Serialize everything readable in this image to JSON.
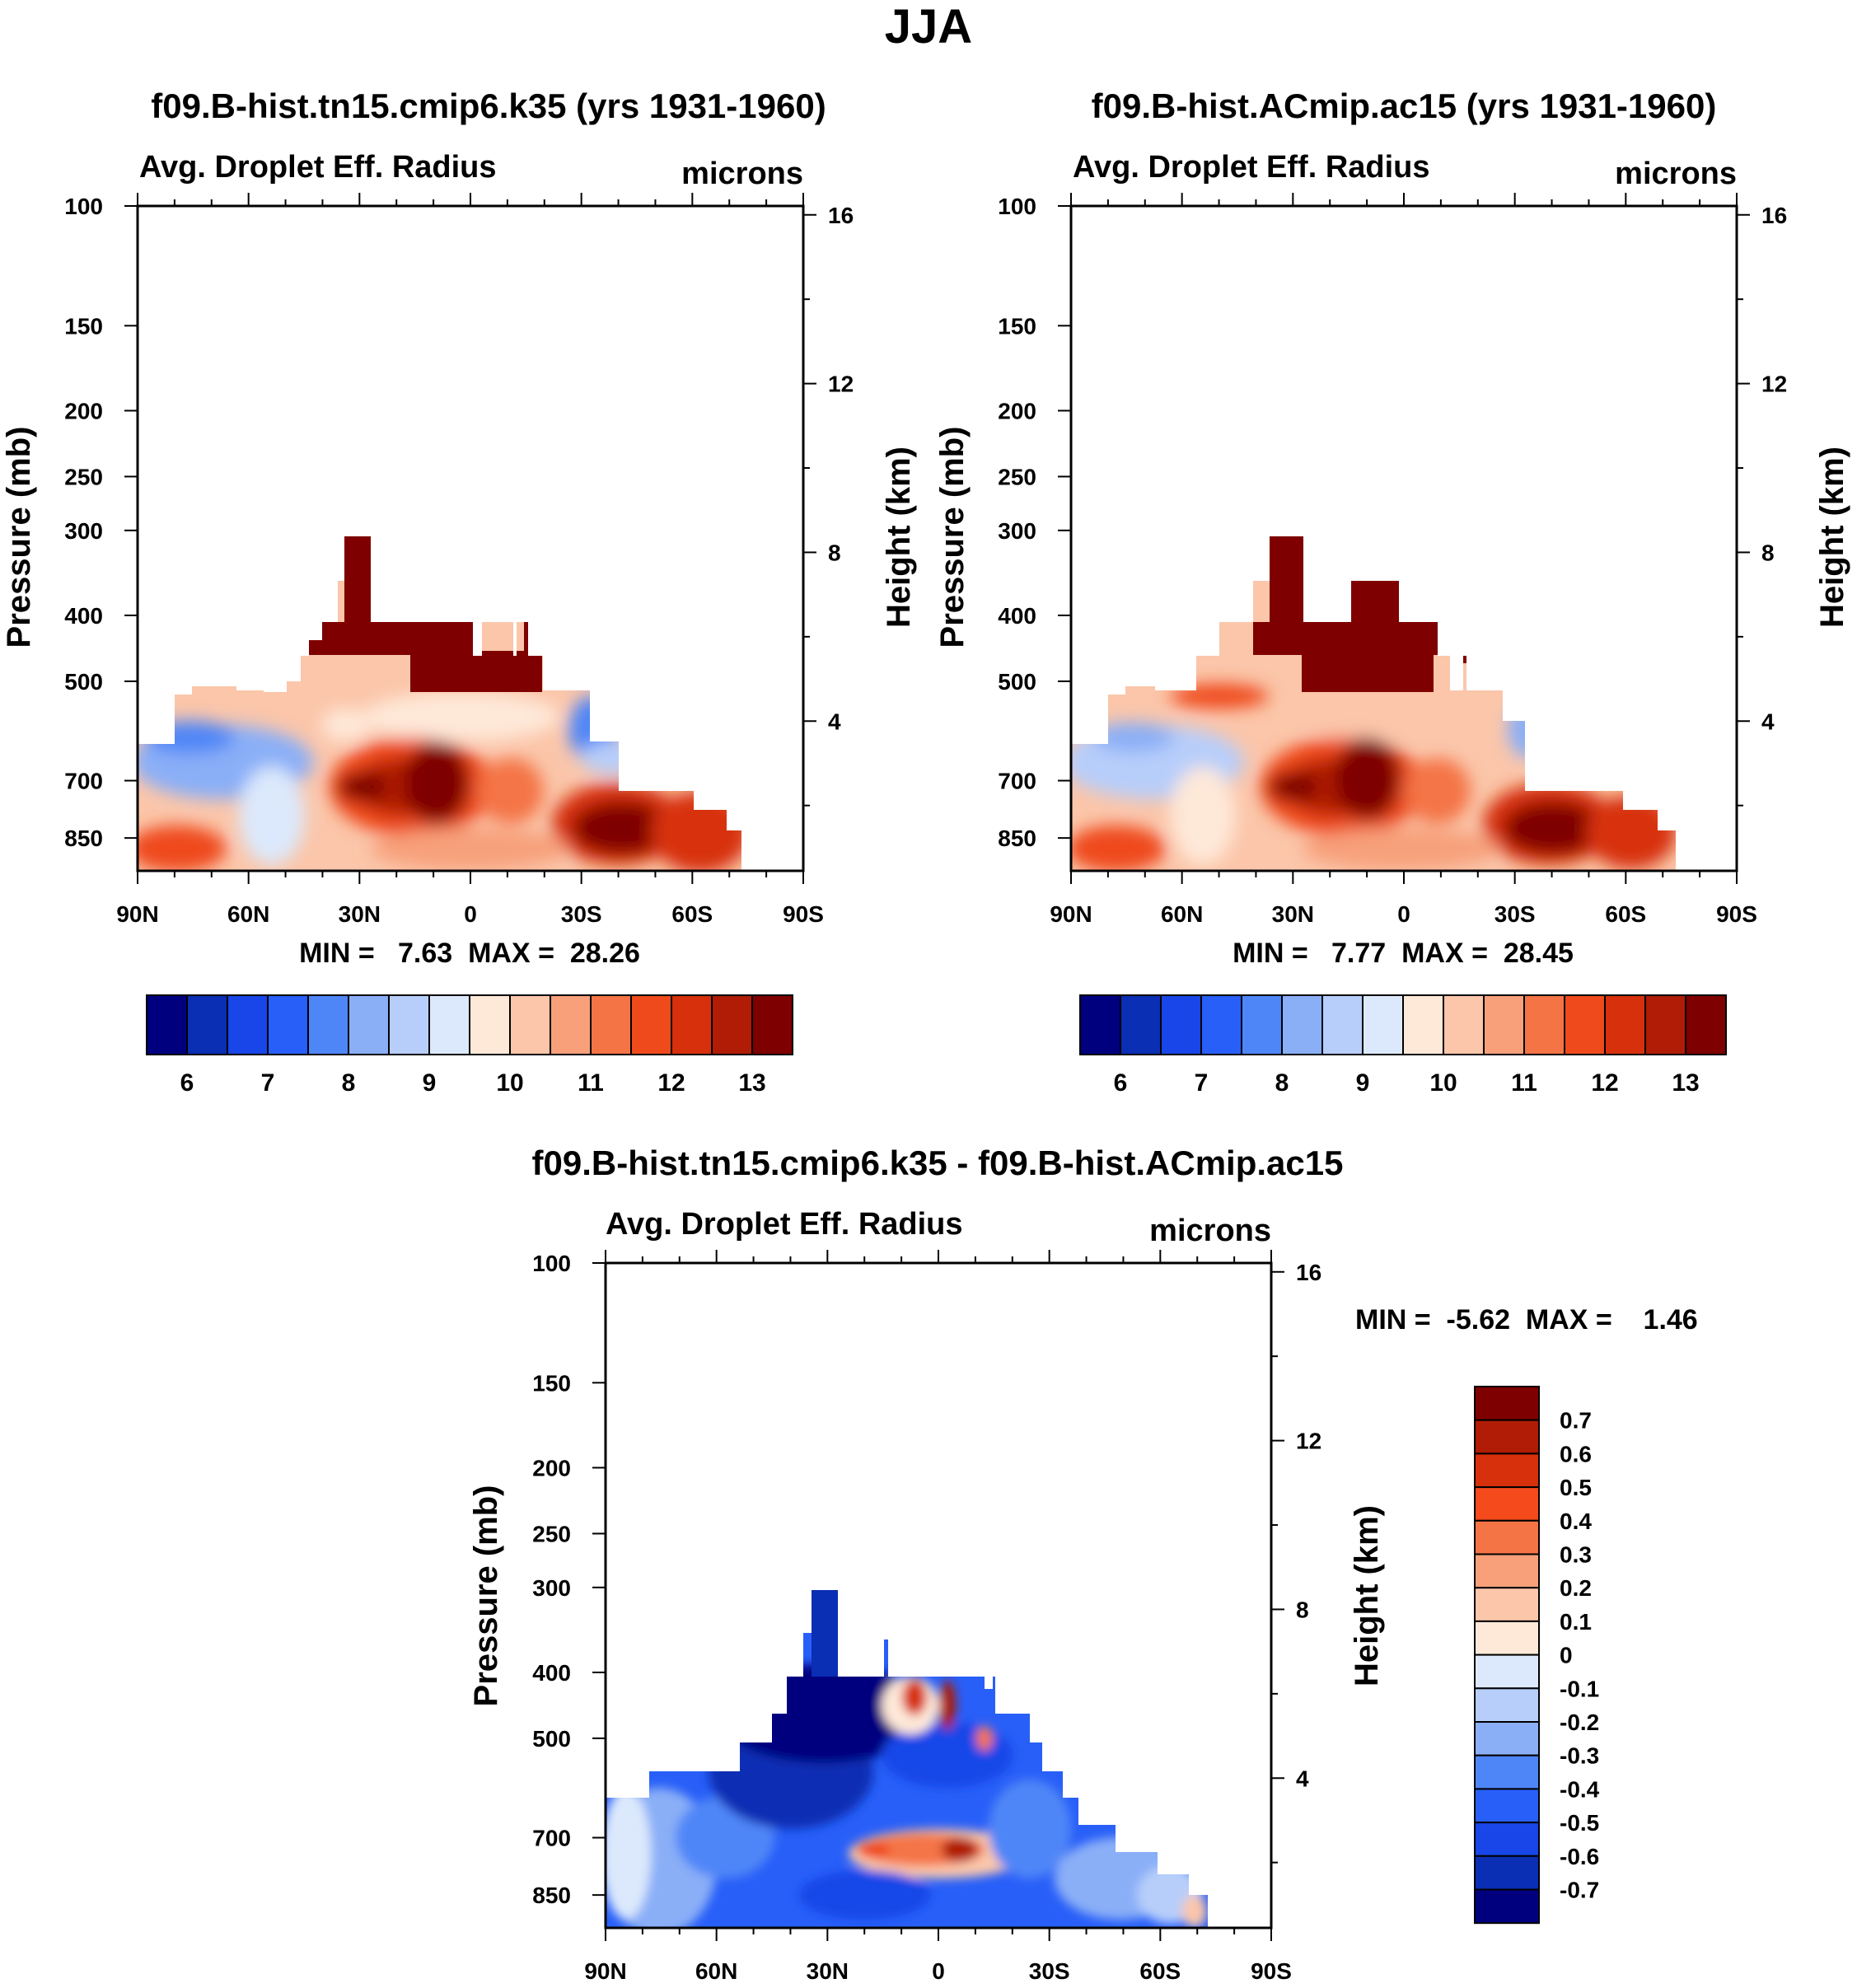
{
  "figure_title": "JJA",
  "chart_data": [
    {
      "type": "heatmap",
      "title": "f09.B-hist.tn15.cmip6.k35 (yrs 1931-1960)",
      "left_label": "Avg. Droplet Eff. Radius",
      "right_label": "microns",
      "ylabel": "Pressure (mb)",
      "ylabel_right": "Height (km)",
      "xticks": [
        "90N",
        "60N",
        "30N",
        "0",
        "30S",
        "60S",
        "90S"
      ],
      "xlim": [
        90,
        -90
      ],
      "yticks": [
        "100",
        "150",
        "200",
        "250",
        "300",
        "400",
        "500",
        "700",
        "850"
      ],
      "ylim": [
        100,
        950
      ],
      "yticks_right": [
        "16",
        "12",
        "8",
        "4"
      ],
      "stats": "MIN =   7.63  MAX =  28.26",
      "colorbar": {
        "orientation": "horizontal",
        "labels": [
          "6",
          "7",
          "8",
          "9",
          "10",
          "11",
          "12",
          "13"
        ],
        "colors": [
          "#00007f",
          "#0a2eb4",
          "#1846e8",
          "#285ff8",
          "#4f86f7",
          "#8aaff7",
          "#b7cefa",
          "#dce9fc",
          "#fee8d8",
          "#fbc6aa",
          "#f7a07a",
          "#f47446",
          "#ef4a1c",
          "#d7300c",
          "#b01c06",
          "#7f0000"
        ]
      },
      "field_description": "Zonal mean droplet effective radius; maxima near 700-850 mb at 30N-10N and 30S-50S"
    },
    {
      "type": "heatmap",
      "title": "f09.B-hist.ACmip.ac15 (yrs 1931-1960)",
      "left_label": "Avg. Droplet Eff. Radius",
      "right_label": "microns",
      "ylabel": "Pressure (mb)",
      "ylabel_right": "Height (km)",
      "xticks": [
        "90N",
        "60N",
        "30N",
        "0",
        "30S",
        "60S",
        "90S"
      ],
      "xlim": [
        90,
        -90
      ],
      "yticks": [
        "100",
        "150",
        "200",
        "250",
        "300",
        "400",
        "500",
        "700",
        "850"
      ],
      "ylim": [
        100,
        950
      ],
      "yticks_right": [
        "16",
        "12",
        "8",
        "4"
      ],
      "stats": "MIN =   7.77  MAX =  28.45",
      "colorbar": {
        "orientation": "horizontal",
        "labels": [
          "6",
          "7",
          "8",
          "9",
          "10",
          "11",
          "12",
          "13"
        ],
        "colors": [
          "#00007f",
          "#0a2eb4",
          "#1846e8",
          "#285ff8",
          "#4f86f7",
          "#8aaff7",
          "#b7cefa",
          "#dce9fc",
          "#fee8d8",
          "#fbc6aa",
          "#f7a07a",
          "#f47446",
          "#ef4a1c",
          "#d7300c",
          "#b01c06",
          "#7f0000"
        ]
      },
      "field_description": "Zonal mean droplet effective radius; similar to left panel with slightly larger values"
    },
    {
      "type": "heatmap",
      "title": "f09.B-hist.tn15.cmip6.k35 - f09.B-hist.ACmip.ac15",
      "left_label": "Avg. Droplet Eff. Radius",
      "right_label": "microns",
      "ylabel": "Pressure (mb)",
      "ylabel_right": "Height (km)",
      "xticks": [
        "90N",
        "60N",
        "30N",
        "0",
        "30S",
        "60S",
        "90S"
      ],
      "xlim": [
        90,
        -90
      ],
      "yticks": [
        "100",
        "150",
        "200",
        "250",
        "300",
        "400",
        "500",
        "700",
        "850"
      ],
      "ylim": [
        100,
        950
      ],
      "yticks_right": [
        "16",
        "12",
        "8",
        "4"
      ],
      "stats": "MIN =  -5.62  MAX =    1.46",
      "colorbar": {
        "orientation": "vertical",
        "labels": [
          "0.7",
          "0.6",
          "0.5",
          "0.4",
          "0.3",
          "0.2",
          "0.1",
          "0",
          "-0.1",
          "-0.2",
          "-0.3",
          "-0.4",
          "-0.5",
          "-0.6",
          "-0.7"
        ],
        "colors": [
          "#7f0000",
          "#b01c06",
          "#d7300c",
          "#f44a1c",
          "#f47446",
          "#f7a07a",
          "#fbc6aa",
          "#fee8d8",
          "#dce9fc",
          "#b7cefa",
          "#8aaff7",
          "#4f86f7",
          "#285ff8",
          "#1846e8",
          "#0a2eb4",
          "#00007f"
        ]
      },
      "field_description": "Difference field; mostly negative (blue) with a positive band near 700 mb 10N-15S"
    }
  ]
}
